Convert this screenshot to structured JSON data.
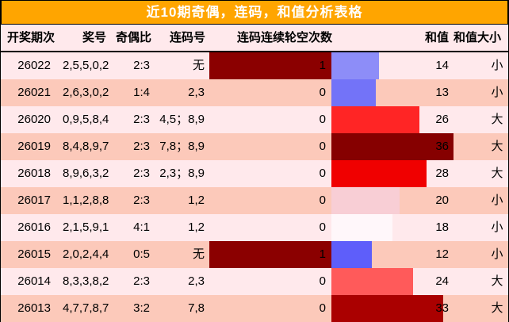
{
  "title": "近10期奇偶，连码，和值分析表格",
  "columns": {
    "period": "开奖期次",
    "numbers": "奖号",
    "odd_even": "奇偶比",
    "lianma": "连码号",
    "lunkong": "连码连续轮空次数",
    "sum": "和值",
    "sum_size": "和值大小"
  },
  "colors": {
    "title_bg": "#FFA500",
    "title_text": "#FFFFFF",
    "row_light": "#FFE9EC",
    "row_dark": "#FCC9BA",
    "lunkong_bar": "#8B0000",
    "border": "#000000"
  },
  "table": {
    "rows": [
      {
        "period": "26022",
        "numbers": "2,5,5,0,2",
        "odd_even": "2:3",
        "lianma": "无",
        "lunkong": "1",
        "lunkong_bar": true,
        "sum": 14,
        "sum_size": "小",
        "sum_bar_color": "#8D8DF8"
      },
      {
        "period": "26021",
        "numbers": "2,6,3,0,2",
        "odd_even": "1:4",
        "lianma": "2,3",
        "lunkong": "0",
        "lunkong_bar": false,
        "sum": 13,
        "sum_size": "小",
        "sum_bar_color": "#7373F8"
      },
      {
        "period": "26020",
        "numbers": "0,9,5,8,4",
        "odd_even": "2:3",
        "lianma": "4,5；8,9",
        "lunkong": "0",
        "lunkong_bar": false,
        "sum": 26,
        "sum_size": "大",
        "sum_bar_color": "#FF2525"
      },
      {
        "period": "26019",
        "numbers": "8,4,8,9,7",
        "odd_even": "2:3",
        "lianma": "7,8；8,9",
        "lunkong": "0",
        "lunkong_bar": false,
        "sum": 36,
        "sum_size": "大",
        "sum_bar_color": "#860000"
      },
      {
        "period": "26018",
        "numbers": "8,9,6,3,2",
        "odd_even": "2:3",
        "lianma": "2,3；8,9",
        "lunkong": "0",
        "lunkong_bar": false,
        "sum": 28,
        "sum_size": "大",
        "sum_bar_color": "#F00000"
      },
      {
        "period": "26017",
        "numbers": "1,1,2,8,8",
        "odd_even": "2:3",
        "lianma": "1,2",
        "lunkong": "0",
        "lunkong_bar": false,
        "sum": 20,
        "sum_size": "小",
        "sum_bar_color": "#F8CED5"
      },
      {
        "period": "26016",
        "numbers": "2,1,5,9,1",
        "odd_even": "4:1",
        "lianma": "1,2",
        "lunkong": "0",
        "lunkong_bar": false,
        "sum": 18,
        "sum_size": "小",
        "sum_bar_color": "#FFF7FA"
      },
      {
        "period": "26015",
        "numbers": "2,0,2,4,4",
        "odd_even": "0:5",
        "lianma": "无",
        "lunkong": "1",
        "lunkong_bar": true,
        "sum": 12,
        "sum_size": "小",
        "sum_bar_color": "#5E5EFA"
      },
      {
        "period": "26014",
        "numbers": "8,3,3,8,2",
        "odd_even": "2:3",
        "lianma": "2,3",
        "lunkong": "0",
        "lunkong_bar": false,
        "sum": 24,
        "sum_size": "大",
        "sum_bar_color": "#FF5A5A"
      },
      {
        "period": "26013",
        "numbers": "4,7,7,8,7",
        "odd_even": "3:2",
        "lianma": "7,8",
        "lunkong": "0",
        "lunkong_bar": false,
        "sum": 33,
        "sum_size": "大",
        "sum_bar_color": "#AA0000"
      }
    ]
  },
  "chart_data": {
    "type": "table",
    "title": "近10期奇偶，连码，和值分析表格",
    "columns": [
      "开奖期次",
      "奖号",
      "奇偶比",
      "连码号",
      "连码连续轮空次数",
      "和值",
      "和值大小"
    ],
    "rows": [
      [
        "26022",
        "2,5,5,0,2",
        "2:3",
        "无",
        "1",
        "14",
        "小"
      ],
      [
        "26021",
        "2,6,3,0,2",
        "1:4",
        "2,3",
        "0",
        "13",
        "小"
      ],
      [
        "26020",
        "0,9,5,8,4",
        "2:3",
        "4,5；8,9",
        "0",
        "26",
        "大"
      ],
      [
        "26019",
        "8,4,8,9,7",
        "2:3",
        "7,8；8,9",
        "0",
        "36",
        "大"
      ],
      [
        "26018",
        "8,9,6,3,2",
        "2:3",
        "2,3；8,9",
        "0",
        "28",
        "大"
      ],
      [
        "26017",
        "1,1,2,8,8",
        "2:3",
        "1,2",
        "0",
        "20",
        "小"
      ],
      [
        "26016",
        "2,1,5,9,1",
        "4:1",
        "1,2",
        "0",
        "18",
        "小"
      ],
      [
        "26015",
        "2,0,2,4,4",
        "0:5",
        "无",
        "1",
        "12",
        "小"
      ],
      [
        "26014",
        "8,3,3,8,2",
        "2:3",
        "2,3",
        "0",
        "24",
        "大"
      ],
      [
        "26013",
        "4,7,7,8,7",
        "3:2",
        "7,8",
        "0",
        "33",
        "大"
      ]
    ],
    "bar_encoding": {
      "sum_bar": "horizontal heat bar proportional to 和值, blue=low, white=middle, red=high, dark red=highest",
      "lunkong_bar": "full-width dark red bar when 连码连续轮空次数 = 1"
    }
  }
}
